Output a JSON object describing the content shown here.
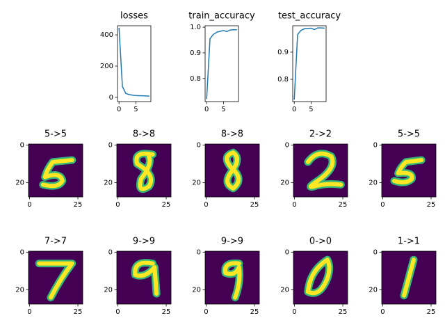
{
  "chart_data": [
    {
      "type": "line",
      "title": "losses",
      "x": [
        0,
        1,
        2,
        3,
        4,
        5,
        6,
        7,
        8,
        9
      ],
      "xlim": [
        -0.45,
        9.45
      ],
      "xticks": [
        0,
        5
      ],
      "ylim": [
        -27,
        458
      ],
      "yticks": [
        0,
        200,
        400
      ],
      "series": [
        {
          "color": "#1f77b4",
          "values": [
            445,
            70,
            25,
            18,
            14,
            12,
            11,
            10,
            9,
            8
          ]
        }
      ]
    },
    {
      "type": "line",
      "title": "train_accuracy",
      "x": [
        0,
        1,
        2,
        3,
        4,
        5,
        6,
        7,
        8,
        9
      ],
      "xlim": [
        -0.45,
        9.45
      ],
      "xticks": [
        0,
        5
      ],
      "ylim": [
        0.71,
        1.0056
      ],
      "yticks": [
        0.8,
        0.9,
        {
          "value": 1.0,
          "label": "1.0"
        }
      ],
      "series": [
        {
          "color": "#1f77b4",
          "values": [
            0.72,
            0.955,
            0.972,
            0.98,
            0.984,
            0.987,
            0.983,
            0.989,
            0.99,
            0.99
          ]
        }
      ]
    },
    {
      "type": "line",
      "title": "test_accuracy",
      "x": [
        0,
        1,
        2,
        3,
        4,
        5,
        6,
        7,
        8,
        9
      ],
      "xlim": [
        -0.45,
        9.45
      ],
      "xticks": [
        0,
        5
      ],
      "ylim": [
        0.718,
        0.997
      ],
      "yticks": [
        0.8,
        0.9
      ],
      "series": [
        {
          "color": "#1f77b4",
          "values": [
            0.725,
            0.965,
            0.98,
            0.986,
            0.987,
            0.988,
            0.983,
            0.989,
            0.989,
            0.988
          ]
        }
      ]
    },
    {
      "type": "image",
      "title": "5->5",
      "xlim": [
        -0.5,
        27.5
      ],
      "ylim": [
        27.5,
        -0.5
      ],
      "xticks": [
        0,
        25
      ],
      "yticks": [
        0,
        20
      ],
      "color": "#440154"
    },
    {
      "type": "image",
      "title": "8->8",
      "xlim": [
        -0.5,
        27.5
      ],
      "ylim": [
        27.5,
        -0.5
      ],
      "xticks": [
        0,
        25
      ],
      "yticks": [
        0,
        20
      ],
      "color": "#440154"
    },
    {
      "type": "image",
      "title": "8->8",
      "xlim": [
        -0.5,
        27.5
      ],
      "ylim": [
        27.5,
        -0.5
      ],
      "xticks": [
        0,
        25
      ],
      "yticks": [
        0,
        20
      ],
      "color": "#440154"
    },
    {
      "type": "image",
      "title": "2->2",
      "xlim": [
        -0.5,
        27.5
      ],
      "ylim": [
        27.5,
        -0.5
      ],
      "xticks": [
        0,
        25
      ],
      "yticks": [
        0,
        20
      ],
      "color": "#440154"
    },
    {
      "type": "image",
      "title": "5->5",
      "xlim": [
        -0.5,
        27.5
      ],
      "ylim": [
        27.5,
        -0.5
      ],
      "xticks": [
        0,
        25
      ],
      "yticks": [
        0,
        20
      ],
      "color": "#440154"
    },
    {
      "type": "image",
      "title": "7->7",
      "xlim": [
        -0.5,
        27.5
      ],
      "ylim": [
        27.5,
        -0.5
      ],
      "xticks": [
        0,
        25
      ],
      "yticks": [
        0,
        20
      ],
      "color": "#440154"
    },
    {
      "type": "image",
      "title": "9->9",
      "xlim": [
        -0.5,
        27.5
      ],
      "ylim": [
        27.5,
        -0.5
      ],
      "xticks": [
        0,
        25
      ],
      "yticks": [
        0,
        20
      ],
      "color": "#440154"
    },
    {
      "type": "image",
      "title": "9->9",
      "xlim": [
        -0.5,
        27.5
      ],
      "ylim": [
        27.5,
        -0.5
      ],
      "xticks": [
        0,
        25
      ],
      "yticks": [
        0,
        20
      ],
      "color": "#440154"
    },
    {
      "type": "image",
      "title": "0->0",
      "xlim": [
        -0.5,
        27.5
      ],
      "ylim": [
        27.5,
        -0.5
      ],
      "xticks": [
        0,
        25
      ],
      "yticks": [
        0,
        20
      ],
      "color": "#440154"
    },
    {
      "type": "image",
      "title": "1->1",
      "xlim": [
        -0.5,
        27.5
      ],
      "ylim": [
        27.5,
        -0.5
      ],
      "xticks": [
        0,
        25
      ],
      "yticks": [
        0,
        20
      ],
      "color": "#440154"
    }
  ]
}
